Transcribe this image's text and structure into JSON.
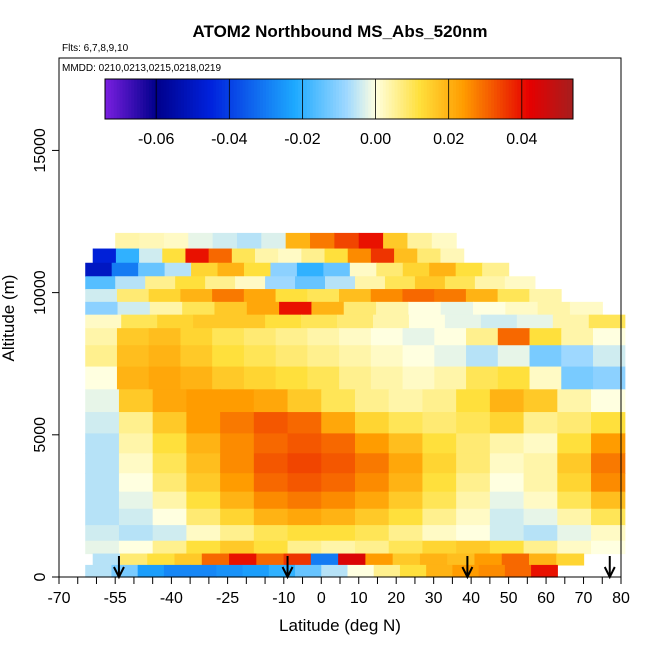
{
  "chart_data": {
    "type": "heatmap",
    "title": "ATOM2 Northbound MS_Abs_520nm",
    "subtitle_flights": "Flts: 6,7,8,9,10",
    "subtitle_dates": "MMDD: 0210,0213,0215,0218,0219",
    "xlabel": "Latitude (deg N)",
    "ylabel": "Altitude (m)",
    "x_ticks": [
      -70,
      -55,
      -40,
      -25,
      -10,
      0,
      10,
      20,
      30,
      40,
      50,
      60,
      70,
      80
    ],
    "x_tick_labels": [
      "-70",
      "-55",
      "-40",
      "-25",
      "-10",
      "0",
      "10",
      "20",
      "30",
      "40",
      "50",
      "60",
      "70",
      "80"
    ],
    "y_ticks": [
      0,
      5000,
      10000,
      15000
    ],
    "y_tick_labels": [
      "0",
      "5000",
      "10000",
      "15000"
    ],
    "colorbar_ticks": [
      -0.06,
      -0.04,
      -0.02,
      0.0,
      0.02,
      0.04
    ],
    "colorbar_tick_labels": [
      "-0.06",
      "-0.04",
      "-0.02",
      "0.00",
      "0.02",
      "0.04"
    ],
    "colorbar_range": [
      -0.074,
      0.054
    ],
    "colorbar_colors": [
      "#7a1fe0",
      "#00008b",
      "#0022dd",
      "#1eaaff",
      "#9ed8ff",
      "#ffffe0",
      "#ffe03c",
      "#ff9c00",
      "#e60000",
      "#a61e1e"
    ],
    "arrow_latitudes": [
      -54,
      -9,
      39,
      77
    ],
    "grid": false,
    "heatmap_rows": [
      {
        "alt": 11800,
        "lat_range": [
          -55,
          36
        ],
        "values": [
          0.004,
          0.003,
          0.002,
          -0.002,
          -0.004,
          -0.006,
          -0.003,
          0.02,
          0.028,
          0.034,
          0.04,
          0.016,
          0.005,
          0.002
        ]
      },
      {
        "alt": 11300,
        "lat_range": [
          -61,
          38
        ],
        "values": [
          -0.046,
          -0.02,
          -0.004,
          0.012,
          0.04,
          0.03,
          0.01,
          0.004,
          0.002,
          0.006,
          0.012,
          0.026,
          0.036,
          0.018,
          0.008,
          0.003
        ]
      },
      {
        "alt": 10800,
        "lat_range": [
          -63,
          50
        ],
        "values": [
          -0.05,
          -0.03,
          -0.014,
          -0.006,
          0.014,
          0.02,
          0.012,
          -0.01,
          -0.02,
          -0.014,
          0.002,
          0.008,
          0.014,
          0.02,
          0.012,
          0.006
        ]
      },
      {
        "alt": 10350,
        "lat_range": [
          -63,
          57
        ],
        "values": [
          -0.016,
          -0.006,
          0.006,
          0.012,
          0.006,
          0.002,
          -0.008,
          -0.014,
          -0.006,
          0.004,
          0.01,
          0.016,
          0.01,
          0.004,
          0.002
        ]
      },
      {
        "alt": 9900,
        "lat_range": [
          -63,
          64
        ],
        "values": [
          -0.004,
          0.008,
          0.014,
          0.02,
          0.028,
          0.022,
          0.012,
          0.01,
          0.018,
          0.026,
          0.03,
          0.028,
          0.02,
          0.01,
          0.004
        ]
      },
      {
        "alt": 9450,
        "lat_range": [
          -63,
          75
        ],
        "values": [
          -0.01,
          -0.004,
          0.004,
          0.01,
          0.016,
          0.022,
          0.04,
          0.02,
          0.008,
          0.004,
          0.0,
          -0.002,
          0.0,
          0.002,
          0.004,
          0.002
        ]
      },
      {
        "alt": 9000,
        "lat_range": [
          -63,
          81
        ],
        "values": [
          0.002,
          0.01,
          0.014,
          0.016,
          0.016,
          0.012,
          0.01,
          0.008,
          0.004,
          0.0,
          -0.002,
          -0.004,
          -0.002,
          0.004,
          0.01
        ]
      },
      {
        "alt": 8500,
        "lat_range": [
          -63,
          81
        ],
        "values": [
          0.004,
          0.016,
          0.018,
          0.014,
          0.01,
          0.008,
          0.006,
          0.004,
          0.002,
          0.0,
          -0.002,
          0.0,
          0.006,
          0.03,
          0.012,
          0.004,
          0.0
        ]
      },
      {
        "alt": 7800,
        "lat_range": [
          -63,
          81
        ],
        "values": [
          0.006,
          0.018,
          0.02,
          0.016,
          0.012,
          0.01,
          0.008,
          0.006,
          0.004,
          0.002,
          0.0,
          -0.002,
          -0.006,
          -0.002,
          -0.012,
          -0.008,
          -0.004
        ]
      },
      {
        "alt": 7000,
        "lat_range": [
          -63,
          81
        ],
        "values": [
          0.0,
          0.02,
          0.022,
          0.02,
          0.016,
          0.014,
          0.012,
          0.01,
          0.006,
          0.004,
          0.002,
          0.004,
          0.01,
          0.012,
          0.002,
          -0.012,
          -0.01
        ]
      },
      {
        "alt": 6200,
        "lat_range": [
          -63,
          81
        ],
        "values": [
          -0.002,
          0.016,
          0.022,
          0.024,
          0.024,
          0.022,
          0.016,
          0.01,
          0.006,
          0.004,
          0.006,
          0.012,
          0.02,
          0.016,
          0.004,
          0.0
        ]
      },
      {
        "alt": 5400,
        "lat_range": [
          -63,
          81
        ],
        "values": [
          -0.004,
          0.006,
          0.016,
          0.024,
          0.028,
          0.032,
          0.03,
          0.022,
          0.014,
          0.01,
          0.008,
          0.01,
          0.014,
          0.006,
          0.008,
          0.012
        ]
      },
      {
        "alt": 4700,
        "lat_range": [
          -63,
          81
        ],
        "values": [
          -0.006,
          0.004,
          0.012,
          0.02,
          0.026,
          0.03,
          0.032,
          0.03,
          0.024,
          0.018,
          0.012,
          0.008,
          0.004,
          0.002,
          0.012,
          0.024
        ]
      },
      {
        "alt": 4000,
        "lat_range": [
          -63,
          81
        ],
        "values": [
          -0.006,
          0.002,
          0.01,
          0.018,
          0.026,
          0.032,
          0.034,
          0.032,
          0.028,
          0.022,
          0.014,
          0.008,
          0.002,
          0.004,
          0.016,
          0.028
        ]
      },
      {
        "alt": 3300,
        "lat_range": [
          -63,
          81
        ],
        "values": [
          -0.006,
          0.0,
          0.008,
          0.016,
          0.024,
          0.03,
          0.032,
          0.03,
          0.026,
          0.02,
          0.012,
          0.006,
          0.0,
          0.004,
          0.014,
          0.026
        ]
      },
      {
        "alt": 2700,
        "lat_range": [
          -63,
          81
        ],
        "values": [
          -0.006,
          -0.002,
          0.004,
          0.012,
          0.02,
          0.026,
          0.028,
          0.026,
          0.022,
          0.016,
          0.01,
          0.004,
          -0.002,
          0.002,
          0.01,
          0.018
        ]
      },
      {
        "alt": 2100,
        "lat_range": [
          -63,
          81
        ],
        "values": [
          -0.006,
          -0.004,
          0.0,
          0.008,
          0.014,
          0.02,
          0.022,
          0.02,
          0.016,
          0.012,
          0.006,
          0.002,
          -0.004,
          -0.002,
          0.004,
          0.01
        ]
      },
      {
        "alt": 1550,
        "lat_range": [
          -63,
          81
        ],
        "values": [
          -0.004,
          -0.006,
          -0.004,
          0.002,
          0.006,
          0.01,
          0.012,
          0.012,
          0.01,
          0.006,
          0.002,
          0.0,
          -0.004,
          -0.006,
          -0.002,
          0.002
        ]
      },
      {
        "alt": 1000,
        "lat_range": [
          -63,
          81
        ],
        "values": [
          -0.002,
          0.0,
          0.006,
          0.012,
          0.016,
          0.012,
          0.006,
          0.004,
          0.006,
          0.01,
          0.014,
          0.016,
          0.012,
          0.006,
          0.002,
          0.0
        ]
      },
      {
        "alt": 650,
        "lat_range": [
          -61,
          70
        ],
        "values": [
          -0.006,
          0.008,
          0.012,
          0.016,
          0.03,
          0.04,
          0.03,
          0.036,
          -0.03,
          0.044,
          0.024,
          0.016,
          0.02,
          0.018,
          0.024,
          0.03,
          0.02,
          0.014
        ]
      },
      {
        "alt": 200,
        "lat_range": [
          -63,
          63
        ],
        "values": [
          -0.006,
          -0.012,
          -0.024,
          -0.028,
          -0.028,
          -0.026,
          -0.024,
          -0.02,
          -0.014,
          -0.006,
          0.0,
          0.006,
          0.012,
          0.02,
          0.024,
          0.026,
          0.03,
          0.04
        ]
      }
    ]
  }
}
